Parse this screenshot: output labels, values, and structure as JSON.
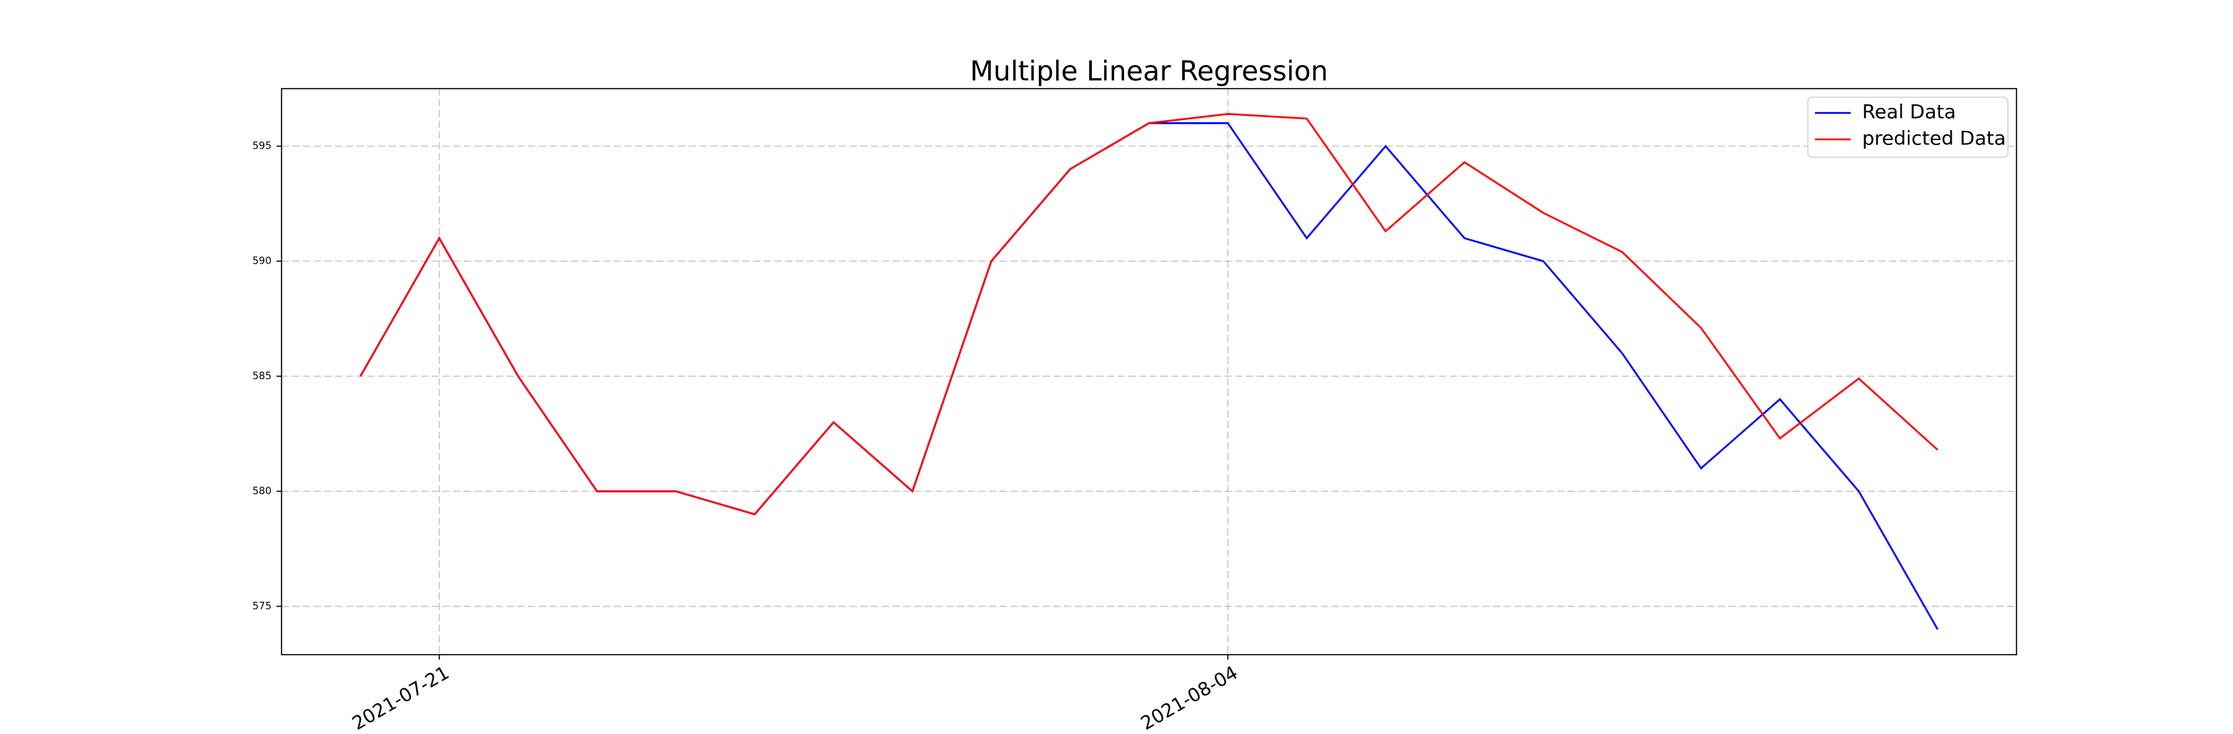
{
  "chart_data": {
    "type": "line",
    "title": "Multiple Linear Regression",
    "categories": [
      null,
      "2021-07-21",
      null,
      null,
      null,
      null,
      null,
      null,
      null,
      null,
      null,
      "2021-08-04",
      null,
      null,
      null,
      null,
      null,
      null,
      null,
      null,
      null
    ],
    "series": [
      {
        "name": "Real Data",
        "color": "#0000ff",
        "values": [
          585,
          591,
          585,
          580,
          580,
          579,
          583,
          580,
          590,
          594,
          596,
          596,
          591,
          595,
          591,
          590,
          586,
          581,
          584,
          580,
          574
        ]
      },
      {
        "name": "predicted Data",
        "color": "#ff0000",
        "values": [
          585,
          591,
          585,
          580,
          580,
          579,
          583,
          580,
          590,
          594,
          596,
          596.4,
          596.2,
          591.3,
          594.3,
          592.1,
          590.4,
          587.1,
          582.3,
          584.9,
          581.8
        ]
      }
    ],
    "xlim": [
      -1,
      21
    ],
    "ylim": [
      572.9,
      597.5
    ],
    "yticks": [
      575,
      580,
      585,
      590,
      595
    ],
    "grid": true,
    "legend": "upper right"
  }
}
